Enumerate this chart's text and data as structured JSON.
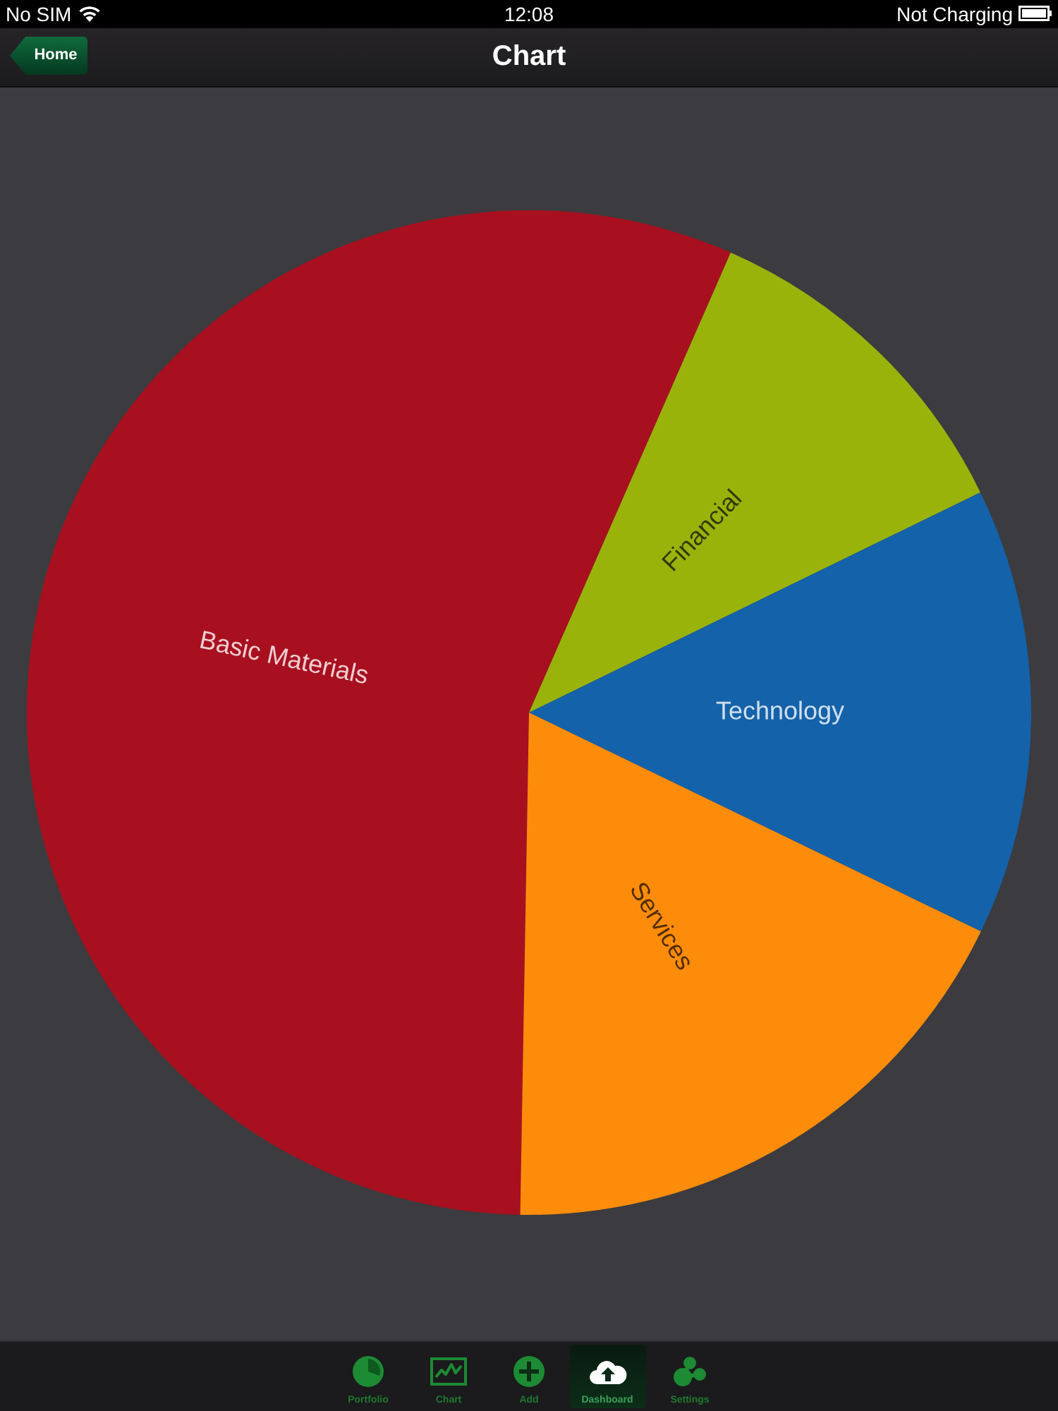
{
  "chart_data": {
    "type": "pie",
    "title": "Chart",
    "categories": [
      "Basic Materials",
      "Financial",
      "Technology",
      "Services"
    ],
    "values": [
      56.3,
      11.2,
      14.4,
      18.1
    ],
    "colors": [
      "#a8101f",
      "#9ab30b",
      "#1462aa",
      "#fe8c0b"
    ],
    "annotations": [
      "No SIM",
      "12:08",
      "Not Charging",
      "Home",
      "Portfolio",
      "Chart",
      "Add",
      "Dashboard",
      "Settings"
    ]
  }
}
